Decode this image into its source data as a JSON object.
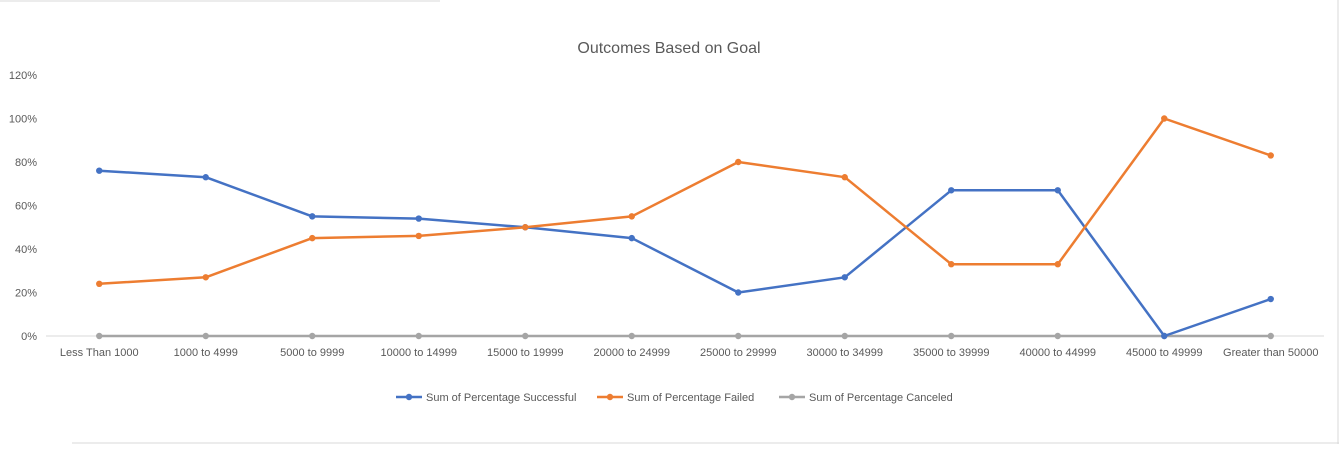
{
  "chart_data": {
    "type": "line",
    "title": "Outcomes Based on Goal",
    "categories": [
      "Less Than 1000",
      "1000 to 4999",
      "5000 to 9999",
      "10000 to 14999",
      "15000 to 19999",
      "20000 to 24999",
      "25000 to 29999",
      "30000 to 34999",
      "35000 to 39999",
      "40000 to 44999",
      "45000 to 49999",
      "Greater than 50000"
    ],
    "y_ticks": [
      "0%",
      "20%",
      "40%",
      "60%",
      "80%",
      "100%",
      "120%"
    ],
    "ylim": [
      0,
      120
    ],
    "grid": false,
    "legend_position": "bottom",
    "series": [
      {
        "name": "Sum of Percentage Successful",
        "color": "#4472c4",
        "values": [
          76,
          73,
          55,
          54,
          50,
          45,
          20,
          27,
          67,
          67,
          0,
          17
        ]
      },
      {
        "name": "Sum of Percentage Failed",
        "color": "#ed7d31",
        "values": [
          24,
          27,
          45,
          46,
          50,
          55,
          80,
          73,
          33,
          33,
          100,
          83
        ]
      },
      {
        "name": "Sum of Percentage Canceled",
        "color": "#a5a5a5",
        "values": [
          0,
          0,
          0,
          0,
          0,
          0,
          0,
          0,
          0,
          0,
          0,
          0
        ]
      }
    ]
  }
}
